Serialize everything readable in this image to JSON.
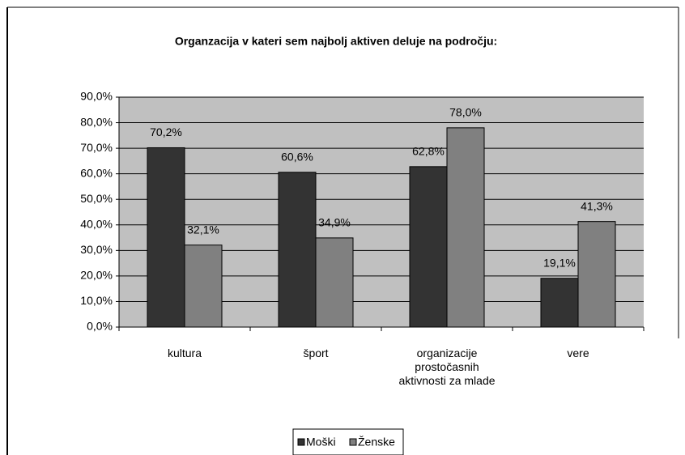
{
  "chart_data": {
    "type": "bar",
    "title": "Organzacija v kateri sem najbolj aktiven deluje na področju:",
    "categories": [
      "kultura",
      "šport",
      "organizacije prostočasnih aktivnosti za mlade",
      "vere"
    ],
    "series": [
      {
        "name": "Moški",
        "color": "#333333",
        "values": [
          70.2,
          60.6,
          62.8,
          19.1
        ],
        "value_labels": [
          "70,2%",
          "60,6%",
          "62,8%",
          "19,1%"
        ]
      },
      {
        "name": "Ženske",
        "color": "#808080",
        "values": [
          32.1,
          34.9,
          78.0,
          41.3
        ],
        "value_labels": [
          "32,1%",
          "34,9%",
          "78,0%",
          "41,3%"
        ]
      }
    ],
    "ylim": [
      0,
      90
    ],
    "yticks": [
      {
        "value": 0,
        "label": "0,0%"
      },
      {
        "value": 10,
        "label": "10,0%"
      },
      {
        "value": 20,
        "label": "20,0%"
      },
      {
        "value": 30,
        "label": "30,0%"
      },
      {
        "value": 40,
        "label": "40,0%"
      },
      {
        "value": 50,
        "label": "50,0%"
      },
      {
        "value": 60,
        "label": "60,0%"
      },
      {
        "value": 70,
        "label": "70,0%"
      },
      {
        "value": 80,
        "label": "80,0%"
      },
      {
        "value": 90,
        "label": "90,0%"
      }
    ],
    "grid": true,
    "legend": "bottom"
  }
}
